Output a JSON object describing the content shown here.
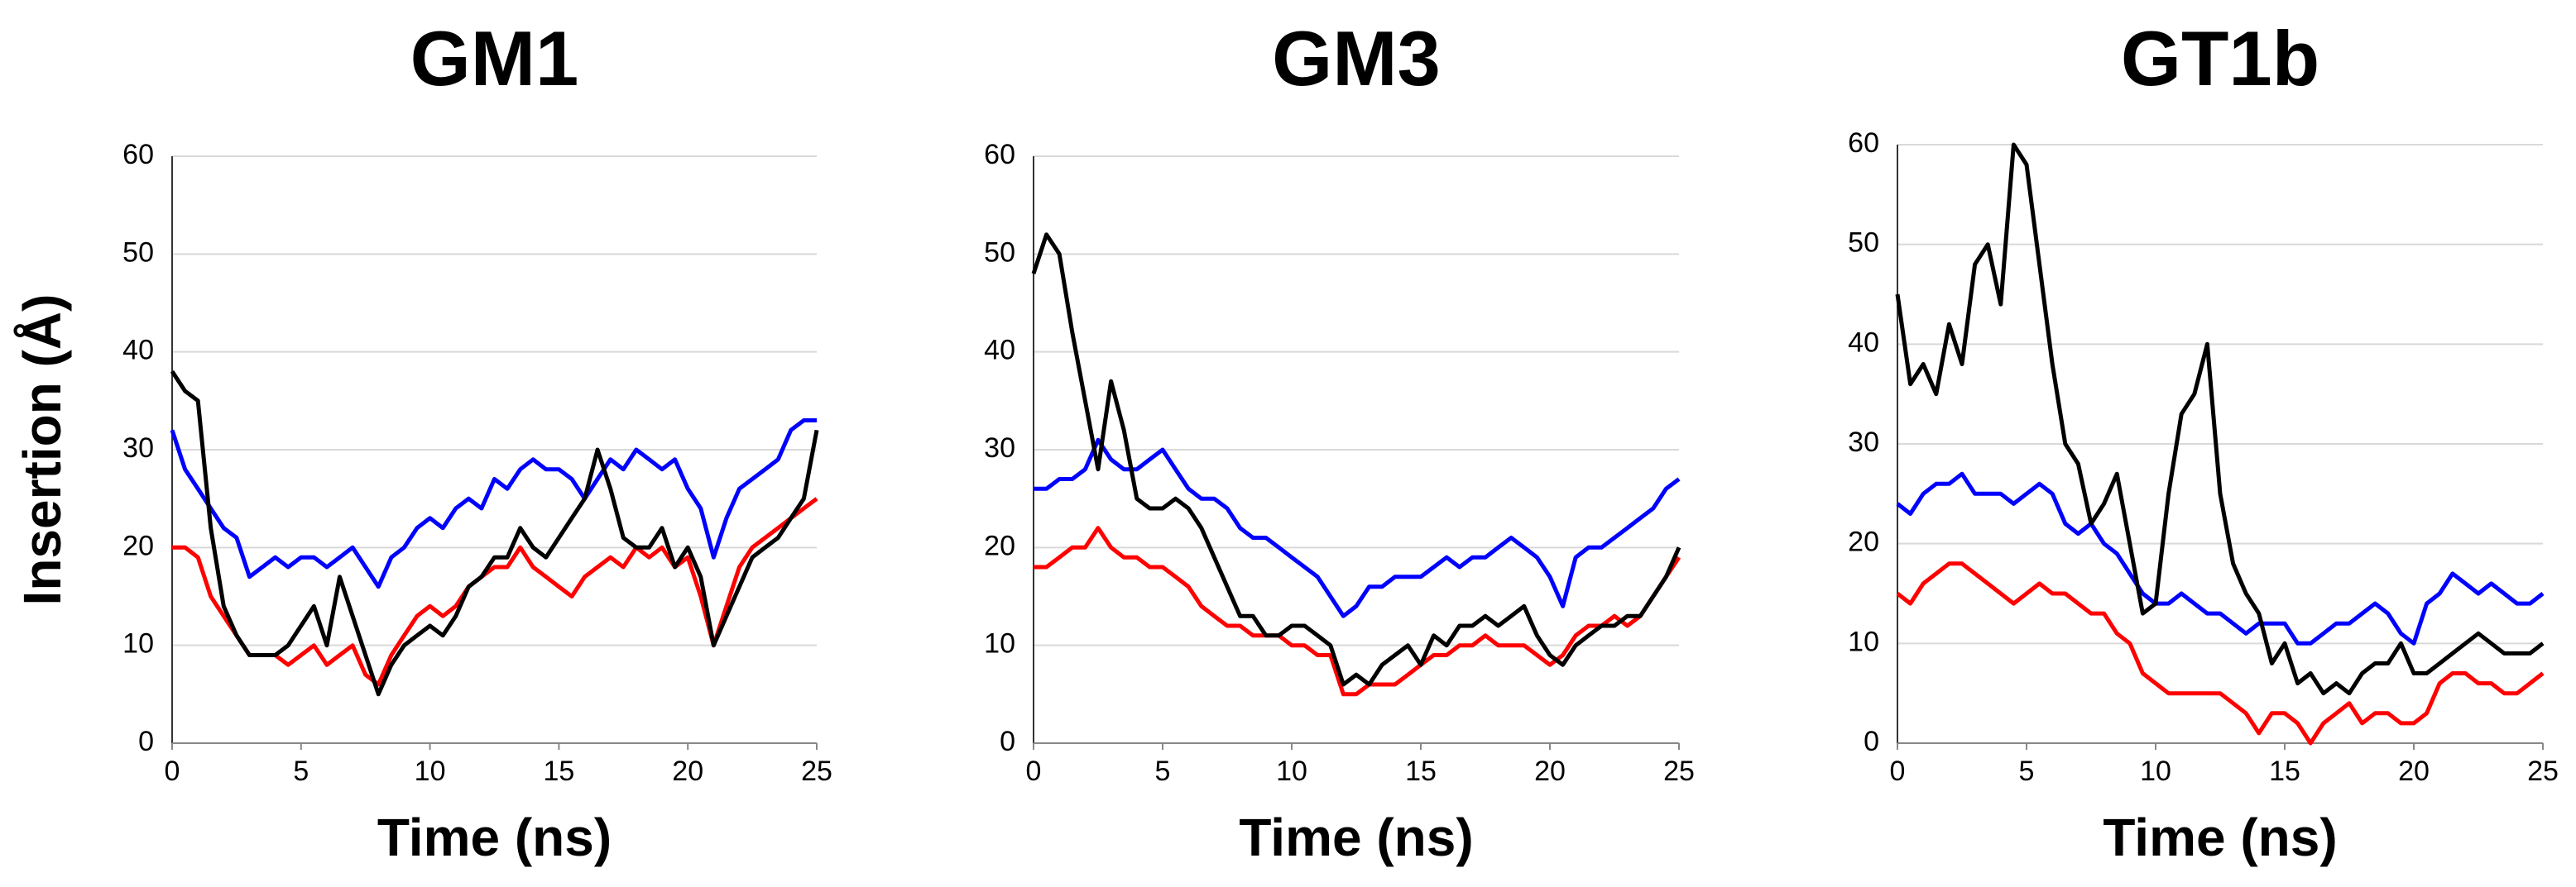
{
  "chart_data": [
    {
      "type": "line",
      "title": "GM1",
      "x_label": "Time (ns)",
      "y_label": "Insertion (Å)",
      "x": [
        0,
        0.5,
        1,
        1.5,
        2,
        2.5,
        3,
        3.5,
        4,
        4.5,
        5,
        5.5,
        6,
        6.5,
        7,
        7.5,
        8,
        8.5,
        9,
        9.5,
        10,
        10.5,
        11,
        11.5,
        12,
        12.5,
        13,
        13.5,
        14,
        14.5,
        15,
        15.5,
        16,
        16.5,
        17,
        17.5,
        18,
        18.5,
        19,
        19.5,
        20,
        20.5,
        21,
        21.5,
        22,
        22.5,
        23,
        23.5,
        24,
        24.5,
        25
      ],
      "series": [
        {
          "color": "#0000ff",
          "values": [
            32,
            28,
            26,
            24,
            22,
            21,
            17,
            18,
            19,
            18,
            19,
            19,
            18,
            19,
            20,
            18,
            16,
            19,
            20,
            22,
            23,
            22,
            24,
            25,
            24,
            27,
            26,
            28,
            29,
            28,
            28,
            27,
            25,
            27,
            29,
            28,
            30,
            29,
            28,
            29,
            26,
            24,
            19,
            23,
            26,
            27,
            28,
            29,
            32,
            33,
            33
          ]
        },
        {
          "color": "#ff0000",
          "values": [
            20,
            20,
            19,
            15,
            13,
            11,
            9,
            9,
            9,
            8,
            9,
            10,
            8,
            9,
            10,
            7,
            6,
            9,
            11,
            13,
            14,
            13,
            14,
            16,
            17,
            18,
            18,
            20,
            18,
            17,
            16,
            15,
            17,
            18,
            19,
            18,
            20,
            19,
            20,
            18,
            19,
            15,
            10,
            14,
            18,
            20,
            21,
            22,
            23,
            24,
            25
          ]
        },
        {
          "color": "#000000",
          "values": [
            38,
            36,
            35,
            22,
            14,
            11,
            9,
            9,
            9,
            10,
            12,
            14,
            10,
            17,
            13,
            9,
            5,
            8,
            10,
            11,
            12,
            11,
            13,
            16,
            17,
            19,
            19,
            22,
            20,
            19,
            21,
            23,
            25,
            30,
            26,
            21,
            20,
            20,
            22,
            18,
            20,
            17,
            10,
            13,
            16,
            19,
            20,
            21,
            23,
            25,
            32
          ]
        }
      ],
      "xlim": [
        0,
        25
      ],
      "ylim": [
        0,
        60
      ],
      "xticks": [
        0,
        5,
        10,
        15,
        20,
        25
      ],
      "yticks": [
        0,
        10,
        20,
        30,
        40,
        50,
        60
      ],
      "grid": true
    },
    {
      "type": "line",
      "title": "GM3",
      "x_label": "Time (ns)",
      "x": [
        0,
        0.5,
        1,
        1.5,
        2,
        2.5,
        3,
        3.5,
        4,
        4.5,
        5,
        5.5,
        6,
        6.5,
        7,
        7.5,
        8,
        8.5,
        9,
        9.5,
        10,
        10.5,
        11,
        11.5,
        12,
        12.5,
        13,
        13.5,
        14,
        14.5,
        15,
        15.5,
        16,
        16.5,
        17,
        17.5,
        18,
        18.5,
        19,
        19.5,
        20,
        20.5,
        21,
        21.5,
        22,
        22.5,
        23,
        23.5,
        24,
        24.5,
        25
      ],
      "series": [
        {
          "color": "#0000ff",
          "values": [
            26,
            26,
            27,
            27,
            28,
            31,
            29,
            28,
            28,
            29,
            30,
            28,
            26,
            25,
            25,
            24,
            22,
            21,
            21,
            20,
            19,
            18,
            17,
            15,
            13,
            14,
            16,
            16,
            17,
            17,
            17,
            18,
            19,
            18,
            19,
            19,
            20,
            21,
            20,
            19,
            17,
            14,
            19,
            20,
            20,
            21,
            22,
            23,
            24,
            26,
            27
          ]
        },
        {
          "color": "#ff0000",
          "values": [
            18,
            18,
            19,
            20,
            20,
            22,
            20,
            19,
            19,
            18,
            18,
            17,
            16,
            14,
            13,
            12,
            12,
            11,
            11,
            11,
            10,
            10,
            9,
            9,
            5,
            5,
            6,
            6,
            6,
            7,
            8,
            9,
            9,
            10,
            10,
            11,
            10,
            10,
            10,
            9,
            8,
            9,
            11,
            12,
            12,
            13,
            12,
            13,
            15,
            17,
            19
          ]
        },
        {
          "color": "#000000",
          "values": [
            48,
            52,
            50,
            42,
            35,
            28,
            37,
            32,
            25,
            24,
            24,
            25,
            24,
            22,
            19,
            16,
            13,
            13,
            11,
            11,
            12,
            12,
            11,
            10,
            6,
            7,
            6,
            8,
            9,
            10,
            8,
            11,
            10,
            12,
            12,
            13,
            12,
            13,
            14,
            11,
            9,
            8,
            10,
            11,
            12,
            12,
            13,
            13,
            15,
            17,
            20
          ]
        }
      ],
      "xlim": [
        0,
        25
      ],
      "ylim": [
        0,
        60
      ],
      "xticks": [
        0,
        5,
        10,
        15,
        20,
        25
      ],
      "yticks": [
        0,
        10,
        20,
        30,
        40,
        50,
        60
      ],
      "grid": true
    },
    {
      "type": "line",
      "title": "GT1b",
      "x_label": "Time (ns)",
      "x": [
        0,
        0.5,
        1,
        1.5,
        2,
        2.5,
        3,
        3.5,
        4,
        4.5,
        5,
        5.5,
        6,
        6.5,
        7,
        7.5,
        8,
        8.5,
        9,
        9.5,
        10,
        10.5,
        11,
        11.5,
        12,
        12.5,
        13,
        13.5,
        14,
        14.5,
        15,
        15.5,
        16,
        16.5,
        17,
        17.5,
        18,
        18.5,
        19,
        19.5,
        20,
        20.5,
        21,
        21.5,
        22,
        22.5,
        23,
        23.5,
        24,
        24.5,
        25
      ],
      "series": [
        {
          "color": "#0000ff",
          "values": [
            24,
            23,
            25,
            26,
            26,
            27,
            25,
            25,
            25,
            24,
            25,
            26,
            25,
            22,
            21,
            22,
            20,
            19,
            17,
            15,
            14,
            14,
            15,
            14,
            13,
            13,
            12,
            11,
            12,
            12,
            12,
            10,
            10,
            11,
            12,
            12,
            13,
            14,
            13,
            11,
            10,
            14,
            15,
            17,
            16,
            15,
            16,
            15,
            14,
            14,
            15
          ]
        },
        {
          "color": "#ff0000",
          "values": [
            15,
            14,
            16,
            17,
            18,
            18,
            17,
            16,
            15,
            14,
            15,
            16,
            15,
            15,
            14,
            13,
            13,
            11,
            10,
            7,
            6,
            5,
            5,
            5,
            5,
            5,
            4,
            3,
            1,
            3,
            3,
            2,
            0,
            2,
            3,
            4,
            2,
            3,
            3,
            2,
            2,
            3,
            6,
            7,
            7,
            6,
            6,
            5,
            5,
            6,
            7
          ]
        },
        {
          "color": "#000000",
          "values": [
            45,
            36,
            38,
            35,
            42,
            38,
            48,
            50,
            44,
            60,
            58,
            48,
            38,
            30,
            28,
            22,
            24,
            27,
            20,
            13,
            14,
            25,
            33,
            35,
            40,
            25,
            18,
            15,
            13,
            8,
            10,
            6,
            7,
            5,
            6,
            5,
            7,
            8,
            8,
            10,
            7,
            7,
            8,
            9,
            10,
            11,
            10,
            9,
            9,
            9,
            10
          ]
        }
      ],
      "xlim": [
        0,
        25
      ],
      "ylim": [
        0,
        60
      ],
      "xticks": [
        0,
        5,
        10,
        15,
        20,
        25
      ],
      "yticks": [
        0,
        10,
        20,
        30,
        40,
        50,
        60
      ],
      "grid": true
    }
  ]
}
